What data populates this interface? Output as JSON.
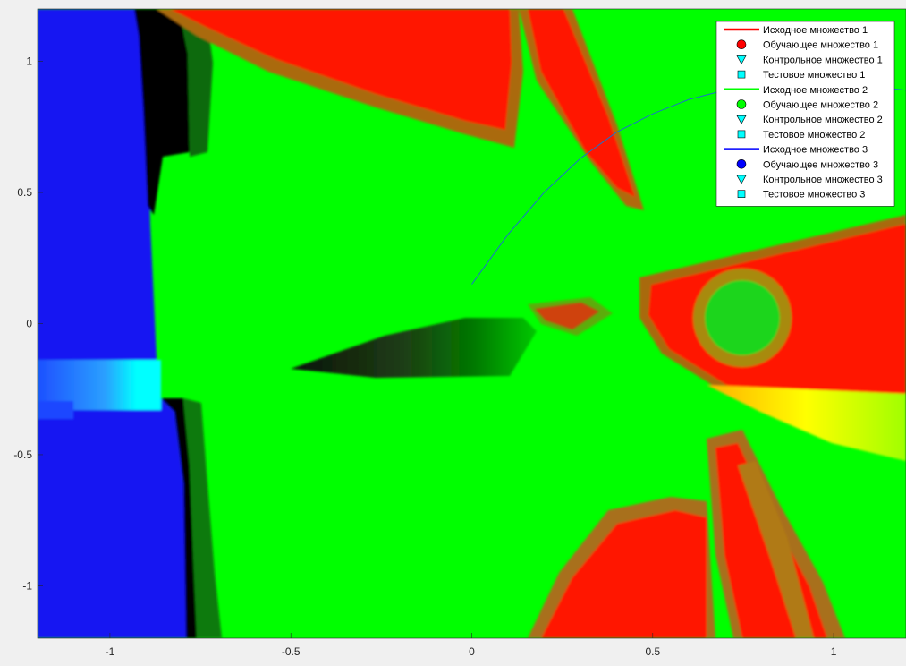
{
  "chart_data": {
    "type": "heatmap",
    "title": "",
    "xlabel": "",
    "ylabel": "",
    "xlim": [
      -1.2,
      1.2
    ],
    "ylim": [
      -1.2,
      1.2
    ],
    "x_ticks": [
      -1,
      -0.5,
      0,
      0.5,
      1
    ],
    "x_tick_labels": [
      "-1",
      "-0.5",
      "0",
      "0.5",
      "1"
    ],
    "y_ticks": [
      1,
      0.5,
      0,
      -0.5,
      -1
    ],
    "y_tick_labels": [
      "1",
      "0.5",
      "0",
      "-0.5",
      "-1"
    ],
    "grid": false,
    "legend_position": "top-right",
    "class_colors": {
      "class1": "#ff0000",
      "class2": "#00ff00",
      "class3": "#0000ff",
      "unassigned": "#000000",
      "mixed13": "#00ffff",
      "mixed12": "#ffff00"
    },
    "regions": {
      "class3_left_strip": {
        "x": [
          -1.2,
          -0.88
        ],
        "y": [
          -1.2,
          1.2
        ],
        "color": "#1515f0"
      },
      "class3_cyan_band": {
        "x": [
          -1.2,
          -0.86
        ],
        "y": [
          -0.33,
          -0.18
        ]
      },
      "dark_boundary_top": {
        "x": [
          -0.92,
          -0.8
        ],
        "y": [
          0.7,
          1.2
        ]
      },
      "dark_boundary_bottom": {
        "x": [
          -0.84,
          -0.77
        ],
        "y": [
          -1.2,
          -0.3
        ]
      },
      "class1_top_wedge": {
        "x": [
          -0.9,
          0.3
        ],
        "y": [
          0.75,
          1.2
        ]
      },
      "class1_top_diagonal": {
        "x": [
          0.15,
          0.48
        ],
        "y": [
          0.45,
          1.2
        ]
      },
      "class1_right_wedge": {
        "x": [
          0.47,
          1.2
        ],
        "y": [
          -0.25,
          0.35
        ]
      },
      "class2_island": {
        "x": [
          0.74,
          0.01
        ],
        "radius": 0.13
      },
      "mixed_yellow_right": {
        "x": [
          0.7,
          1.2
        ],
        "y": [
          -0.55,
          -0.28
        ]
      },
      "class1_bottom_wedge": {
        "x": [
          0.25,
          1.2
        ],
        "y": [
          -1.2,
          -0.7
        ]
      },
      "class1_bottom_diagonal": {
        "x": [
          0.66,
          1.0
        ],
        "y": [
          -1.2,
          -0.4
        ]
      },
      "dark_center_spike": {
        "x": [
          -0.5,
          0.2
        ],
        "y": [
          -0.2,
          0.0
        ]
      },
      "class1_center_tip": {
        "x": [
          0.17,
          0.3
        ],
        "y": [
          0.0,
          0.07
        ]
      }
    },
    "series": [
      {
        "name": "Исходное множество 2",
        "type": "line",
        "x": [
          0.0,
          0.1,
          0.2,
          0.3,
          0.4,
          0.5,
          0.6,
          0.7,
          0.8,
          0.9,
          1.0,
          1.1,
          1.2
        ],
        "y": [
          0.15,
          0.34,
          0.5,
          0.63,
          0.73,
          0.8,
          0.855,
          0.89,
          0.91,
          0.92,
          0.915,
          0.905,
          0.89
        ],
        "color": "#1a73c9"
      }
    ],
    "legend": [
      {
        "label": "Исходное множество 1",
        "marker": "line",
        "color": "#ff0000"
      },
      {
        "label": "Обучающее множество 1",
        "marker": "circle",
        "color": "#ff0000"
      },
      {
        "label": "Контрольное множество 1",
        "marker": "triangle-down",
        "color": "#00ffff"
      },
      {
        "label": "Тестовое множество 1",
        "marker": "square",
        "color": "#00ffff"
      },
      {
        "label": "Исходное множество 2",
        "marker": "line",
        "color": "#00ff00"
      },
      {
        "label": "Обучающее множество 2",
        "marker": "circle",
        "color": "#00ff00"
      },
      {
        "label": "Контрольное множество 2",
        "marker": "triangle-down",
        "color": "#00ffff"
      },
      {
        "label": "Тестовое множество 2",
        "marker": "square",
        "color": "#00ffff"
      },
      {
        "label": "Исходное множество 3",
        "marker": "line",
        "color": "#0000ff"
      },
      {
        "label": "Обучающее множество 3",
        "marker": "circle",
        "color": "#0000ff"
      },
      {
        "label": "Контрольное множество 3",
        "marker": "triangle-down",
        "color": "#00ffff"
      },
      {
        "label": "Тестовое множество 3",
        "marker": "square",
        "color": "#00ffff"
      }
    ]
  }
}
